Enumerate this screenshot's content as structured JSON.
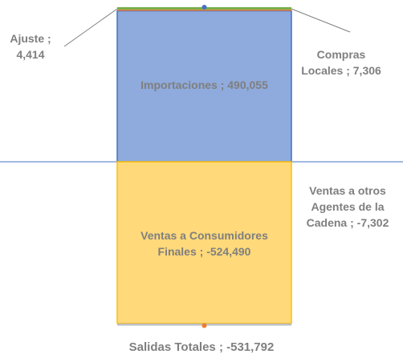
{
  "chart_data": {
    "type": "stacked-bar",
    "series": [
      {
        "name": "Importaciones",
        "color": "#8faadc",
        "values": [
          490055
        ],
        "value_labels": [
          "Importaciones ; 490,055"
        ]
      },
      {
        "name": "Ajuste",
        "color": "#ed7d31",
        "values": [
          4414
        ],
        "value_labels": [
          "Ajuste ; 4,414"
        ]
      },
      {
        "name": "Compras Locales",
        "color": "#70ad47",
        "values": [
          7306
        ],
        "value_labels": [
          "Compras Locales ; 7,306"
        ]
      },
      {
        "name": "Ventas a Consumidores Finales",
        "color": "#ffd97a",
        "values": [
          -524490
        ],
        "value_labels": [
          "Ventas a Consumidores Finales ; -524,490"
        ]
      },
      {
        "name": "Ventas a otros Agentes de la Cadena",
        "color": "#bfbfbf",
        "values": [
          -7302
        ],
        "value_labels": [
          "Ventas a otros Agentes de la Cadena ; -7,302"
        ]
      }
    ],
    "total": {
      "value": -531792,
      "label": "Salidas Totales ; -531,792"
    }
  }
}
